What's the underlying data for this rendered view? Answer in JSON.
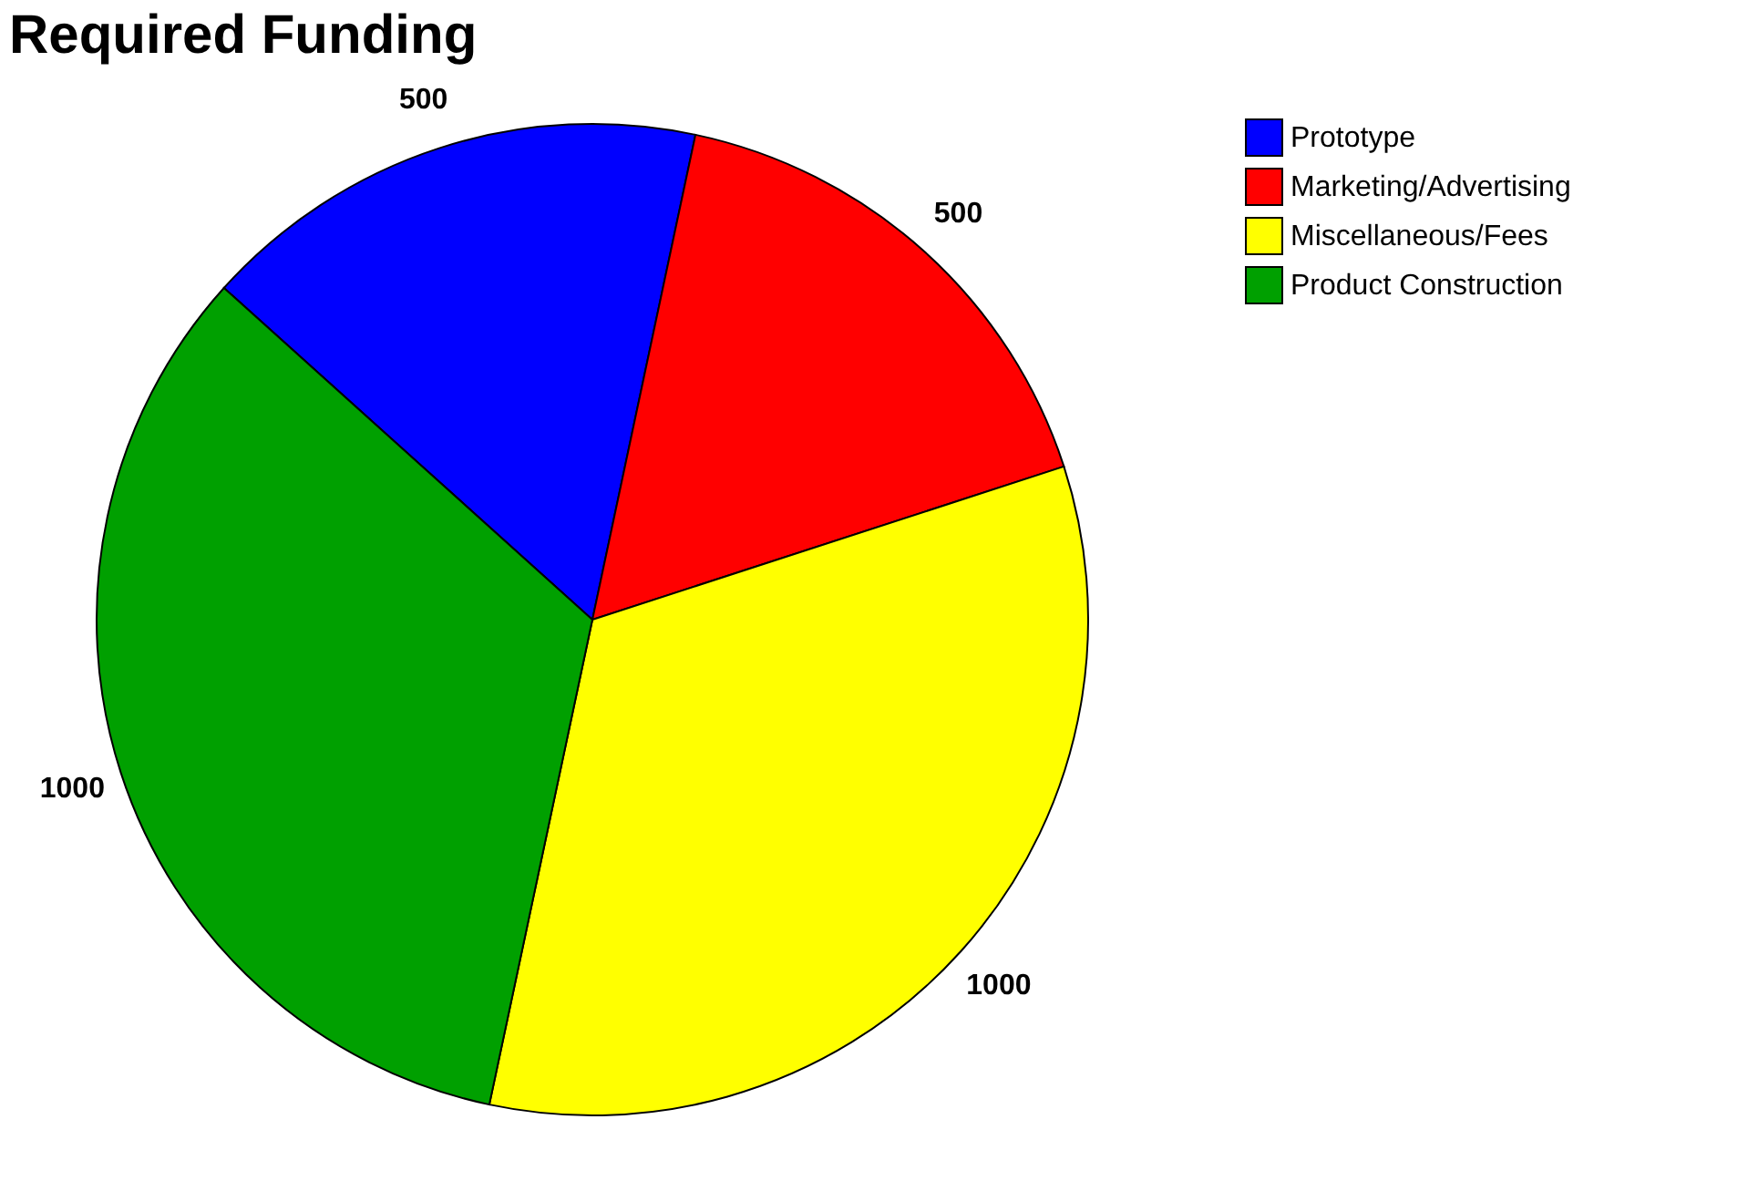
{
  "chart_data": {
    "type": "pie",
    "title": "Required Funding",
    "categories": [
      "Prototype",
      "Marketing/Advertising",
      "Miscellaneous/Fees",
      "Product Construction"
    ],
    "values": [
      500,
      500,
      1000,
      1000
    ],
    "colors": [
      "#0000ff",
      "#ff0000",
      "#ffff00",
      "#00a000"
    ],
    "data_labels": true,
    "legend": "right"
  }
}
